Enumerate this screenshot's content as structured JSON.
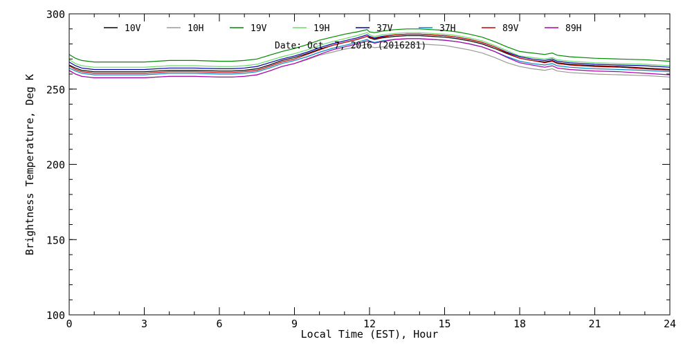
{
  "chart_data": {
    "type": "line",
    "xlabel": "Local Time (EST), Hour",
    "ylabel": "Brightness Temperature, Deg K",
    "annotation": "Date: Oct  7, 2016 (2016281)",
    "xlim": [
      0,
      24
    ],
    "ylim": [
      100,
      300
    ],
    "xticks": [
      0,
      3,
      6,
      9,
      12,
      15,
      18,
      21,
      24
    ],
    "yticks": [
      100,
      150,
      200,
      250,
      300
    ],
    "x_minor_step": 1,
    "y_minor_step": 10,
    "grid": false,
    "legend_position": "top",
    "x": [
      0,
      0.25,
      0.5,
      1,
      2,
      3,
      4,
      5,
      6,
      6.5,
      7,
      7.5,
      8,
      8.5,
      9,
      9.5,
      10,
      10.5,
      11,
      11.5,
      11.9,
      12,
      12.2,
      12.5,
      13,
      13.5,
      14,
      14.5,
      15,
      15.5,
      16,
      16.5,
      17,
      17.5,
      18,
      18.5,
      19,
      19.3,
      19.5,
      20,
      21,
      22,
      23,
      24
    ],
    "series": [
      {
        "name": "10V",
        "color": "#000000",
        "values": [
          266,
          264,
          262.5,
          261.5,
          261.5,
          261.5,
          262.5,
          262.5,
          262,
          262,
          262.5,
          263.5,
          266,
          269,
          271,
          273.5,
          276.5,
          279,
          281,
          283,
          285,
          284,
          283,
          284,
          285,
          285.5,
          285.5,
          285,
          284.5,
          283.5,
          282,
          280,
          277,
          273.5,
          270.5,
          269,
          268,
          269,
          267.5,
          266.5,
          265.5,
          265,
          264,
          263
        ]
      },
      {
        "name": "10H",
        "color": "#999999",
        "values": [
          262,
          260,
          258.5,
          257.5,
          257.5,
          257.5,
          258.5,
          258.5,
          258,
          258,
          258.5,
          259.5,
          262,
          265,
          267,
          269.5,
          272.5,
          274.5,
          276.5,
          278,
          280,
          278.5,
          277.5,
          278,
          279,
          279.5,
          280,
          279.5,
          279,
          277.5,
          276,
          274,
          271,
          267.5,
          265,
          263.5,
          262.5,
          263.5,
          262,
          261,
          260,
          259.5,
          259,
          258
        ]
      },
      {
        "name": "19V",
        "color": "#008800",
        "values": [
          273,
          270.5,
          269,
          268,
          268,
          268,
          269,
          269,
          268.5,
          268.5,
          269,
          270,
          272.5,
          275,
          277,
          279.5,
          282.5,
          284.5,
          286.5,
          288,
          289.5,
          288,
          287.5,
          288.5,
          289.5,
          290,
          290,
          289.5,
          289,
          288,
          286.5,
          284.5,
          281.5,
          278,
          275,
          274,
          273,
          274,
          272.5,
          271.5,
          270.5,
          270,
          269.5,
          268.5
        ]
      },
      {
        "name": "19H",
        "color": "#66dd66",
        "values": [
          269.5,
          267,
          265.5,
          264.5,
          264.5,
          264.5,
          265.5,
          265.5,
          265,
          265,
          265.5,
          266.5,
          269,
          271.5,
          273.5,
          276,
          279,
          281.5,
          283.5,
          285.5,
          287.5,
          286,
          285,
          286,
          287,
          287.5,
          287.5,
          287,
          286.5,
          285.5,
          284,
          282,
          279,
          275.5,
          272,
          271,
          270,
          271,
          269.5,
          268.5,
          267.5,
          267,
          266.5,
          265.5
        ]
      },
      {
        "name": "37V",
        "color": "#0000aa",
        "values": [
          268,
          265.5,
          264,
          263,
          263,
          263,
          264,
          264,
          263.5,
          263.5,
          264,
          265,
          267.5,
          270,
          272,
          274.5,
          277.5,
          280,
          282,
          284,
          286,
          285,
          284,
          285,
          286,
          286.5,
          286.5,
          286,
          285.5,
          284.5,
          283,
          281,
          278,
          274.5,
          271.5,
          270,
          269,
          270,
          268.5,
          267.5,
          266.5,
          266,
          265.5,
          264.5
        ]
      },
      {
        "name": "37H",
        "color": "#0088cc",
        "values": [
          264,
          262,
          260.5,
          259.5,
          259.5,
          259.5,
          260.5,
          260.5,
          260,
          260,
          260.5,
          261.5,
          264,
          267,
          269,
          271.5,
          274.5,
          277,
          279,
          281,
          283,
          282,
          281,
          282,
          283,
          283.5,
          283.5,
          283,
          282.5,
          281.5,
          280,
          278,
          275,
          271.5,
          268.5,
          267,
          266,
          267,
          265.5,
          264.5,
          263.5,
          263,
          262.5,
          261.5
        ]
      },
      {
        "name": "89V",
        "color": "#cc0000",
        "values": [
          265.5,
          263,
          261.5,
          260.5,
          260.5,
          260.5,
          261.5,
          261.5,
          261,
          261,
          261.5,
          262.5,
          265,
          268,
          270,
          273,
          276,
          279,
          281,
          283,
          285,
          284.5,
          283.5,
          284.5,
          286,
          286.5,
          286.5,
          286,
          285.5,
          284.5,
          283,
          281,
          278,
          274,
          270.5,
          269,
          267.5,
          268.5,
          267,
          266,
          265,
          264.5,
          263.5,
          262.5
        ]
      },
      {
        "name": "89H",
        "color": "#aa00aa",
        "values": [
          262.5,
          260,
          258.5,
          257.5,
          257.5,
          257.5,
          258.5,
          258.5,
          258,
          258,
          258.5,
          259.5,
          262,
          265,
          267,
          270,
          273,
          276,
          278,
          280,
          282,
          281.5,
          280.5,
          281.5,
          283,
          283.5,
          283.5,
          283,
          282.5,
          281.5,
          280,
          278,
          275,
          271,
          267.5,
          266,
          264.5,
          265.5,
          264,
          263,
          262,
          261.5,
          260.5,
          259.5
        ]
      }
    ]
  }
}
